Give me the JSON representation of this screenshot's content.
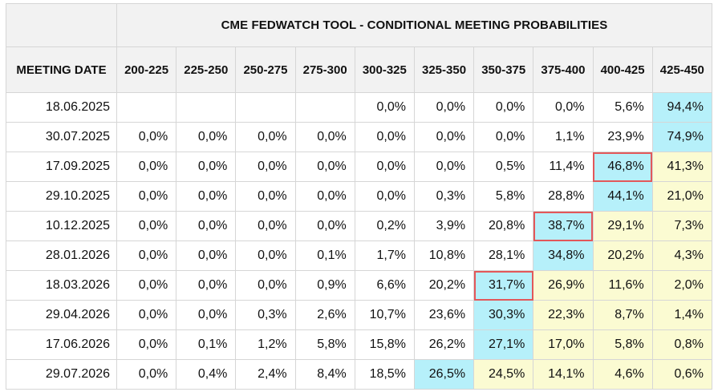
{
  "chart_data": {
    "type": "table",
    "title": "CME FEDWATCH TOOL - CONDITIONAL MEETING PROBABILITIES",
    "row_header_label": "MEETING DATE",
    "columns": [
      "200-225",
      "225-250",
      "250-275",
      "275-300",
      "300-325",
      "325-350",
      "350-375",
      "375-400",
      "400-425",
      "425-450"
    ],
    "rows": [
      {
        "date": "18.06.2025",
        "values": [
          "",
          "",
          "",
          "",
          "0,0%",
          "0,0%",
          "0,0%",
          "0,0%",
          "5,6%",
          "94,4%"
        ],
        "highlight": [
          null,
          null,
          null,
          null,
          null,
          null,
          null,
          null,
          null,
          "cyan"
        ],
        "boxed": null
      },
      {
        "date": "30.07.2025",
        "values": [
          "0,0%",
          "0,0%",
          "0,0%",
          "0,0%",
          "0,0%",
          "0,0%",
          "0,0%",
          "1,1%",
          "23,9%",
          "74,9%"
        ],
        "highlight": [
          null,
          null,
          null,
          null,
          null,
          null,
          null,
          null,
          null,
          "cyan"
        ],
        "boxed": null
      },
      {
        "date": "17.09.2025",
        "values": [
          "0,0%",
          "0,0%",
          "0,0%",
          "0,0%",
          "0,0%",
          "0,0%",
          "0,5%",
          "11,4%",
          "46,8%",
          "41,3%"
        ],
        "highlight": [
          null,
          null,
          null,
          null,
          null,
          null,
          null,
          null,
          "cyan",
          "yellow"
        ],
        "boxed": 8
      },
      {
        "date": "29.10.2025",
        "values": [
          "0,0%",
          "0,0%",
          "0,0%",
          "0,0%",
          "0,0%",
          "0,3%",
          "5,8%",
          "28,8%",
          "44,1%",
          "21,0%"
        ],
        "highlight": [
          null,
          null,
          null,
          null,
          null,
          null,
          null,
          null,
          "cyan",
          "yellow"
        ],
        "boxed": null
      },
      {
        "date": "10.12.2025",
        "values": [
          "0,0%",
          "0,0%",
          "0,0%",
          "0,0%",
          "0,2%",
          "3,9%",
          "20,8%",
          "38,7%",
          "29,1%",
          "7,3%"
        ],
        "highlight": [
          null,
          null,
          null,
          null,
          null,
          null,
          null,
          "cyan",
          "yellow",
          "yellow"
        ],
        "boxed": 7
      },
      {
        "date": "28.01.2026",
        "values": [
          "0,0%",
          "0,0%",
          "0,0%",
          "0,1%",
          "1,7%",
          "10,8%",
          "28,1%",
          "34,8%",
          "20,2%",
          "4,3%"
        ],
        "highlight": [
          null,
          null,
          null,
          null,
          null,
          null,
          null,
          "cyan",
          "yellow",
          "yellow"
        ],
        "boxed": null
      },
      {
        "date": "18.03.2026",
        "values": [
          "0,0%",
          "0,0%",
          "0,0%",
          "0,9%",
          "6,6%",
          "20,2%",
          "31,7%",
          "26,9%",
          "11,6%",
          "2,0%"
        ],
        "highlight": [
          null,
          null,
          null,
          null,
          null,
          null,
          "cyan",
          "yellow",
          "yellow",
          "yellow"
        ],
        "boxed": 6
      },
      {
        "date": "29.04.2026",
        "values": [
          "0,0%",
          "0,0%",
          "0,3%",
          "2,6%",
          "10,7%",
          "23,6%",
          "30,3%",
          "22,3%",
          "8,7%",
          "1,4%"
        ],
        "highlight": [
          null,
          null,
          null,
          null,
          null,
          null,
          "cyan",
          "yellow",
          "yellow",
          "yellow"
        ],
        "boxed": null
      },
      {
        "date": "17.06.2026",
        "values": [
          "0,0%",
          "0,1%",
          "1,2%",
          "5,8%",
          "15,8%",
          "26,2%",
          "27,1%",
          "17,0%",
          "5,8%",
          "0,8%"
        ],
        "highlight": [
          null,
          null,
          null,
          null,
          null,
          null,
          "cyan",
          "yellow",
          "yellow",
          "yellow"
        ],
        "boxed": null
      },
      {
        "date": "29.07.2026",
        "values": [
          "0,0%",
          "0,4%",
          "2,4%",
          "8,4%",
          "18,5%",
          "26,5%",
          "24,5%",
          "14,1%",
          "4,6%",
          "0,6%"
        ],
        "highlight": [
          null,
          null,
          null,
          null,
          null,
          "cyan",
          "yellow",
          "yellow",
          "yellow",
          "yellow"
        ],
        "boxed": null
      }
    ],
    "colors": {
      "highlight_cyan": "#b6f0fa",
      "highlight_yellow": "#fbfbd2",
      "box_outline": "#e2585a",
      "header_bg": "#f2f2f2"
    }
  }
}
